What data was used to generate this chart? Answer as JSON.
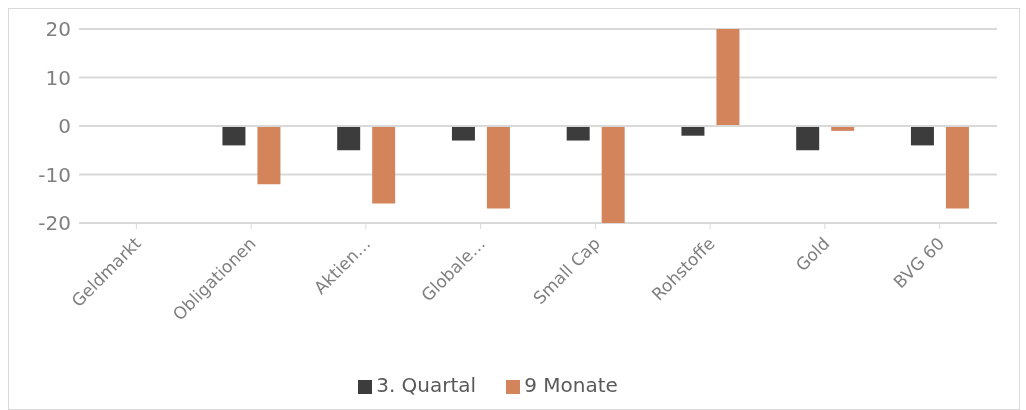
{
  "chart_data": {
    "type": "bar",
    "categories": [
      "Geldmarkt",
      "Obligationen",
      "Aktien…",
      "Globale…",
      "Small Cap",
      "Rohstoffe",
      "Gold",
      "BVG 60"
    ],
    "series": [
      {
        "name": "3. Quartal",
        "color": "#3c3c3c",
        "values": [
          0,
          -4,
          -5,
          -3,
          -3,
          -2,
          -5,
          -4
        ]
      },
      {
        "name": "9 Monate",
        "color": "#d3845a",
        "values": [
          0,
          -12,
          -16,
          -17,
          -20,
          20,
          -1,
          -17
        ]
      }
    ],
    "ylim": [
      -20,
      20
    ],
    "yticks": [
      -20,
      -10,
      0,
      10,
      20
    ],
    "grid": "y",
    "legend": "bottom"
  }
}
